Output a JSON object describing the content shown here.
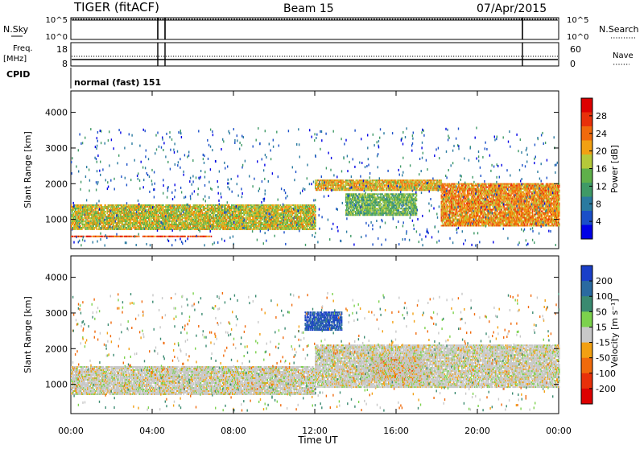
{
  "header": {
    "radar": "TIGER (fitACF)",
    "beam": "Beam 15",
    "date": "07/Apr/2015"
  },
  "noise_panel": {
    "left_label": "N.Sky",
    "right_label": "N.Search",
    "left_ticks": [
      "10^5",
      "10^0"
    ],
    "right_ticks": [
      "10^5",
      "10^0"
    ]
  },
  "freq_panel": {
    "left_label_line1": "Freq.",
    "left_label_line2": "[MHz]",
    "right_label": "Nave",
    "left_ticks": [
      "18",
      "8"
    ],
    "right_ticks": [
      "60",
      "0"
    ]
  },
  "cpid_panel": {
    "label": "CPID",
    "text": "normal (fast) 151"
  },
  "chart_data": [
    {
      "type": "heatmap",
      "title": "",
      "quantity": "Power",
      "xlabel": "Time UT",
      "ylabel": "Slant Range [km]",
      "x_ticks": [
        "00:00",
        "04:00",
        "08:00",
        "12:00",
        "16:00",
        "20:00",
        "00:00"
      ],
      "x_range_hours": [
        0,
        24
      ],
      "y_ticks": [
        1000,
        2000,
        3000,
        4000
      ],
      "ylim": [
        180,
        4600
      ],
      "colorbar": {
        "label": "Power [dB]",
        "ticks": [
          "4",
          "8",
          "12",
          "16",
          "20",
          "24",
          "28"
        ],
        "colors": [
          "#0000e6",
          "#1a4fc8",
          "#2a7aa0",
          "#3f9a66",
          "#5fb04a",
          "#b5c93a",
          "#f2a012",
          "#f06a0c",
          "#e8300a",
          "#dd0000"
        ]
      },
      "bands": [
        {
          "t_start": 0,
          "t_end": 6.9,
          "range_low": 500,
          "range_high": 520,
          "value": 26
        },
        {
          "t_start": 0,
          "t_end": 12,
          "range_low": 700,
          "range_high": 1400,
          "value": 18
        },
        {
          "t_start": 12,
          "t_end": 18.2,
          "range_low": 1800,
          "range_high": 2100,
          "value": 20
        },
        {
          "t_start": 13.5,
          "t_end": 17,
          "range_low": 1100,
          "range_high": 1700,
          "value": 14
        },
        {
          "t_start": 18.2,
          "t_end": 24,
          "range_low": 800,
          "range_high": 2000,
          "value": 22
        }
      ]
    },
    {
      "type": "heatmap",
      "title": "",
      "quantity": "Velocity",
      "xlabel": "Time UT",
      "ylabel": "Slant Range [km]",
      "x_ticks": [
        "00:00",
        "04:00",
        "08:00",
        "12:00",
        "16:00",
        "20:00",
        "00:00"
      ],
      "x_range_hours": [
        0,
        24
      ],
      "y_ticks": [
        1000,
        2000,
        3000,
        4000
      ],
      "ylim": [
        180,
        4600
      ],
      "colorbar": {
        "label": "Velocity [m s⁻¹]",
        "ticks": [
          "200",
          "100",
          "50",
          "15",
          "-15",
          "-50",
          "-100",
          "-200"
        ],
        "colors": [
          "#1a3fc8",
          "#2a6aa0",
          "#3a8a70",
          "#7cd24c",
          "#c8c8c8",
          "#f2a012",
          "#f06a0c",
          "#e8300a",
          "#dd0000"
        ]
      },
      "bands": [
        {
          "t_start": 0,
          "t_end": 12,
          "range_low": 700,
          "range_high": 1500,
          "value": 0
        },
        {
          "t_start": 11.5,
          "t_end": 13.3,
          "range_low": 2500,
          "range_high": 3000,
          "value": 150
        },
        {
          "t_start": 14.8,
          "t_end": 17.2,
          "range_low": 1100,
          "range_high": 1750,
          "value": -60
        },
        {
          "t_start": 12,
          "t_end": 24,
          "range_low": 900,
          "range_high": 2100,
          "value": 0
        }
      ]
    }
  ]
}
